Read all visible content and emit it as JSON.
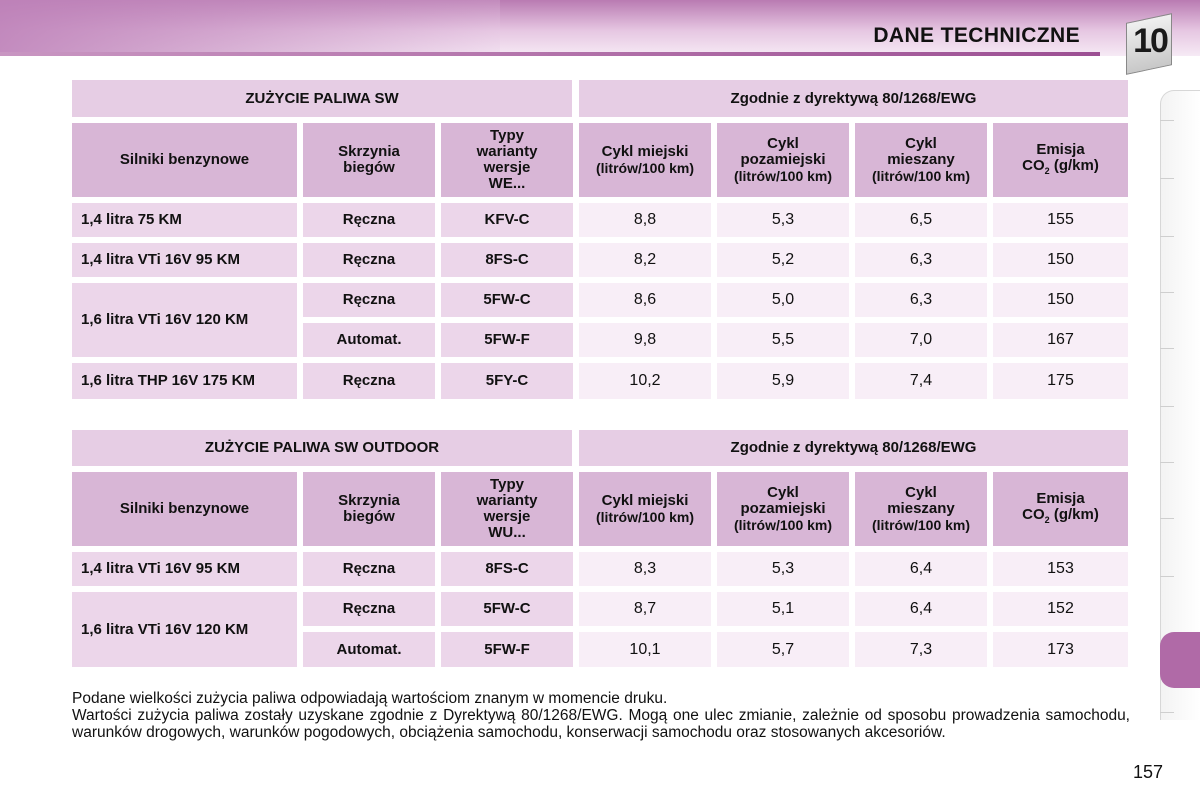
{
  "header": {
    "title": "DANE TECHNICZNE",
    "chapter": "10"
  },
  "tables": [
    {
      "title": "ZUŻYCIE PALIWA SW",
      "directive": "Zgodnie z dyrektywą 80/1268/EWG",
      "columns": {
        "engines": "Silniki benzynowe",
        "gearbox": "Skrzynia biegów",
        "types": "Typy warianty wersje WE...",
        "urban": "Cykl miejski",
        "extra_urban": "Cykl pozamiejski",
        "combined": "Cykl mieszany",
        "unit": "(litrów/100 km)",
        "emission_line1": "Emisja",
        "emission_line2": "CO",
        "emission_sub": "2",
        "emission_unit": "(g/km)"
      },
      "rows": [
        {
          "engine": "1,4 litra 75 KM",
          "gearbox": "Ręczna",
          "type": "KFV-C",
          "urban": "8,8",
          "extra_urban": "5,3",
          "combined": "6,5",
          "co2": "155"
        },
        {
          "engine": "1,4 litra VTi 16V 95 KM",
          "gearbox": "Ręczna",
          "type": "8FS-C",
          "urban": "8,2",
          "extra_urban": "5,2",
          "combined": "6,3",
          "co2": "150"
        },
        {
          "engine": "1,6 litra VTi 16V 120 KM",
          "gearbox": "Ręczna",
          "type": "5FW-C",
          "urban": "8,6",
          "extra_urban": "5,0",
          "combined": "6,3",
          "co2": "150"
        },
        {
          "engine": "",
          "gearbox": "Automat.",
          "type": "5FW-F",
          "urban": "9,8",
          "extra_urban": "5,5",
          "combined": "7,0",
          "co2": "167"
        },
        {
          "engine": "1,6 litra THP 16V 175 KM",
          "gearbox": "Ręczna",
          "type": "5FY-C",
          "urban": "10,2",
          "extra_urban": "5,9",
          "combined": "7,4",
          "co2": "175"
        }
      ]
    },
    {
      "title": "ZUŻYCIE PALIWA SW OUTDOOR",
      "directive": "Zgodnie z dyrektywą 80/1268/EWG",
      "columns": {
        "engines": "Silniki benzynowe",
        "gearbox": "Skrzynia biegów",
        "types": "Typy warianty wersje WU...",
        "urban": "Cykl miejski",
        "extra_urban": "Cykl pozamiejski",
        "combined": "Cykl mieszany",
        "unit": "(litrów/100 km)",
        "emission_line1": "Emisja",
        "emission_line2": "CO",
        "emission_sub": "2",
        "emission_unit": "(g/km)"
      },
      "rows": [
        {
          "engine": "1,4 litra VTi 16V 95 KM",
          "gearbox": "Ręczna",
          "type": "8FS-C",
          "urban": "8,3",
          "extra_urban": "5,3",
          "combined": "6,4",
          "co2": "153"
        },
        {
          "engine": "1,6 litra VTi 16V 120 KM",
          "gearbox": "Ręczna",
          "type": "5FW-C",
          "urban": "8,7",
          "extra_urban": "5,1",
          "combined": "6,4",
          "co2": "152"
        },
        {
          "engine": "",
          "gearbox": "Automat.",
          "type": "5FW-F",
          "urban": "10,1",
          "extra_urban": "5,7",
          "combined": "7,3",
          "co2": "173"
        }
      ]
    }
  ],
  "note": {
    "line1": "Podane wielkości zużycia paliwa odpowiadają wartościom znanym w momencie druku.",
    "line2": "Wartości zużycia paliwa zostały uzyskane zgodnie z Dyrektywą 80/1268/EWG. Mogą one ulec zmianie, zależnie od sposobu prowadzenia samochodu, warunków drogowych, warunków pogodowych, obciążenia samochodu, konserwacji samochodu oraz stosowanych akcesoriów."
  },
  "page_number": "157",
  "colors": {
    "header_cell": "#d8b6d6",
    "row_label_cell": "#ecd6ea",
    "value_cell": "#f8eef7",
    "accent": "#b06aa7"
  }
}
